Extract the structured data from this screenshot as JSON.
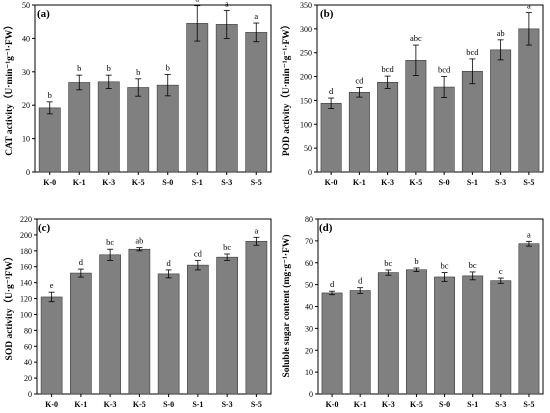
{
  "chart_data": [
    {
      "type": "bar",
      "panel_label": "(a)",
      "ylabel": "CAT activity（U·min⁻¹g⁻¹·FW）",
      "ylim": [
        0,
        50
      ],
      "yticks": [
        0,
        10,
        20,
        30,
        40,
        50
      ],
      "categories": [
        "K-0",
        "K-1",
        "K-3",
        "K-5",
        "S-0",
        "S-1",
        "S-3",
        "S-5"
      ],
      "values": [
        19.2,
        26.8,
        27.0,
        25.3,
        26.0,
        44.5,
        44.2,
        41.8
      ],
      "errors": [
        1.8,
        2.2,
        2.0,
        2.6,
        3.2,
        5.3,
        4.2,
        2.8
      ],
      "letters": [
        "b",
        "b",
        "b",
        "b",
        "b",
        "a",
        "a",
        "a"
      ],
      "bar_color": "#808080"
    },
    {
      "type": "bar",
      "panel_label": "(b)",
      "ylabel": "POD activity（U·min⁻¹g⁻¹·FW）",
      "ylim": [
        0,
        350
      ],
      "yticks": [
        0,
        50,
        100,
        150,
        200,
        250,
        300,
        350
      ],
      "categories": [
        "K-0",
        "K-1",
        "K-3",
        "K-5",
        "S-0",
        "S-1",
        "S-3",
        "S-5"
      ],
      "values": [
        144,
        167,
        188,
        234,
        178,
        211,
        256,
        300
      ],
      "errors": [
        11,
        10,
        13,
        32,
        22,
        26,
        21,
        34
      ],
      "letters": [
        "d",
        "cd",
        "bcd",
        "abc",
        "bcd",
        "bcd",
        "ab",
        "a"
      ],
      "bar_color": "#808080"
    },
    {
      "type": "bar",
      "panel_label": "(c)",
      "ylabel": "SOD activity（U·g⁻¹FW）",
      "ylim": [
        0,
        220
      ],
      "yticks": [
        0,
        20,
        40,
        60,
        80,
        100,
        120,
        140,
        160,
        180,
        200,
        220
      ],
      "categories": [
        "K-0",
        "K-1",
        "K-3",
        "K-5",
        "S-0",
        "S-1",
        "S-3",
        "S-5"
      ],
      "values": [
        122,
        152,
        175,
        182,
        151,
        162,
        172,
        192
      ],
      "errors": [
        6,
        5,
        7,
        2,
        5,
        6,
        4,
        5
      ],
      "letters": [
        "e",
        "d",
        "bc",
        "ab",
        "d",
        "cd",
        "bc",
        "a"
      ],
      "bar_color": "#808080"
    },
    {
      "type": "bar",
      "panel_label": "(d)",
      "ylabel": "Soluble sugar content (mg·g⁻¹·FW)",
      "ylim": [
        0,
        80
      ],
      "yticks": [
        0,
        10,
        20,
        30,
        40,
        50,
        60,
        70,
        80
      ],
      "categories": [
        "K-0",
        "K-1",
        "K-3",
        "K-5",
        "S-0",
        "S-1",
        "S-3",
        "S-5"
      ],
      "values": [
        46.2,
        47.3,
        55.5,
        56.8,
        53.5,
        54.0,
        51.8,
        68.7
      ],
      "errors": [
        0.8,
        1.3,
        1.2,
        0.8,
        2.0,
        1.8,
        1.2,
        1.1
      ],
      "letters": [
        "d",
        "d",
        "bc",
        "b",
        "bc",
        "bc",
        "c",
        "a"
      ],
      "bar_color": "#808080"
    }
  ]
}
